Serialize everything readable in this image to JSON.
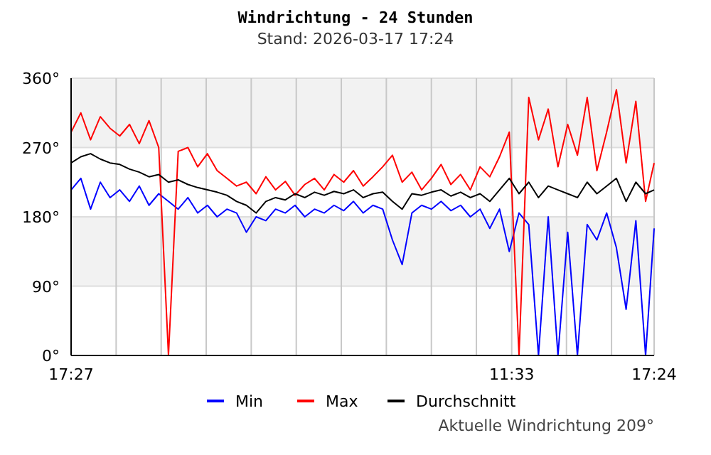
{
  "chart_data": {
    "type": "line",
    "title": "Windrichtung - 24 Stunden",
    "subtitle": "Stand: 2026-03-17 17:24",
    "annotations": [
      "Aktuelle Windrichtung 209°"
    ],
    "x": [
      "2026-03-16T17:27",
      "2026-03-16T17:51",
      "2026-03-16T18:15",
      "2026-03-16T18:39",
      "2026-03-16T19:03",
      "2026-03-16T19:27",
      "2026-03-16T19:51",
      "2026-03-16T20:15",
      "2026-03-16T20:39",
      "2026-03-16T21:03",
      "2026-03-16T21:27",
      "2026-03-16T21:51",
      "2026-03-16T22:15",
      "2026-03-16T22:39",
      "2026-03-16T23:03",
      "2026-03-16T23:27",
      "2026-03-16T23:51",
      "2026-03-17T00:15",
      "2026-03-17T00:39",
      "2026-03-17T01:03",
      "2026-03-17T01:27",
      "2026-03-17T01:51",
      "2026-03-17T02:15",
      "2026-03-17T02:39",
      "2026-03-17T03:03",
      "2026-03-17T03:27",
      "2026-03-17T03:51",
      "2026-03-17T04:15",
      "2026-03-17T04:39",
      "2026-03-17T05:03",
      "2026-03-17T05:27",
      "2026-03-17T05:51",
      "2026-03-17T06:15",
      "2026-03-17T06:39",
      "2026-03-17T07:03",
      "2026-03-17T07:27",
      "2026-03-17T07:51",
      "2026-03-17T08:15",
      "2026-03-17T08:39",
      "2026-03-17T09:03",
      "2026-03-17T09:27",
      "2026-03-17T09:51",
      "2026-03-17T10:15",
      "2026-03-17T10:39",
      "2026-03-17T11:03",
      "2026-03-17T11:27",
      "2026-03-17T11:51",
      "2026-03-17T12:15",
      "2026-03-17T12:39",
      "2026-03-17T13:03",
      "2026-03-17T13:27",
      "2026-03-17T13:51",
      "2026-03-17T14:15",
      "2026-03-17T14:39",
      "2026-03-17T15:03",
      "2026-03-17T15:27",
      "2026-03-17T15:51",
      "2026-03-17T16:15",
      "2026-03-17T16:39",
      "2026-03-17T17:03",
      "2026-03-17T17:24"
    ],
    "series": [
      {
        "name": "Min",
        "color": "#0000ff",
        "values": [
          215,
          230,
          190,
          225,
          205,
          215,
          200,
          220,
          195,
          210,
          200,
          190,
          205,
          185,
          195,
          180,
          190,
          185,
          160,
          180,
          175,
          190,
          185,
          195,
          180,
          190,
          185,
          195,
          188,
          200,
          185,
          195,
          190,
          150,
          118,
          185,
          195,
          190,
          200,
          188,
          195,
          180,
          190,
          165,
          190,
          135,
          185,
          170,
          0,
          180,
          0,
          160,
          0,
          170,
          150,
          185,
          140,
          60,
          175,
          0,
          165
        ]
      },
      {
        "name": "Max",
        "color": "#ff0000",
        "values": [
          290,
          315,
          280,
          310,
          295,
          285,
          300,
          275,
          305,
          270,
          0,
          265,
          270,
          245,
          262,
          240,
          230,
          220,
          225,
          210,
          232,
          215,
          226,
          208,
          222,
          230,
          215,
          235,
          225,
          240,
          220,
          232,
          245,
          260,
          225,
          238,
          215,
          230,
          248,
          222,
          235,
          215,
          245,
          232,
          258,
          290,
          0,
          335,
          280,
          320,
          245,
          300,
          260,
          335,
          240,
          290,
          345,
          250,
          330,
          200,
          250
        ]
      },
      {
        "name": "Durchschnitt",
        "color": "#000000",
        "values": [
          250,
          258,
          262,
          255,
          250,
          248,
          242,
          238,
          232,
          235,
          225,
          228,
          222,
          218,
          215,
          212,
          208,
          200,
          195,
          185,
          200,
          205,
          202,
          210,
          205,
          212,
          208,
          213,
          210,
          215,
          205,
          210,
          212,
          200,
          190,
          210,
          208,
          212,
          215,
          207,
          212,
          205,
          210,
          200,
          215,
          230,
          210,
          225,
          205,
          220,
          215,
          210,
          205,
          225,
          210,
          220,
          230,
          200,
          225,
          210,
          215
        ]
      }
    ],
    "xlim": [
      "2026-03-16T17:27",
      "2026-03-17T17:24"
    ],
    "xticks": [
      {
        "value": "2026-03-16T17:27",
        "label": "17:27"
      },
      {
        "value": "2026-03-16T19:18",
        "label": null
      },
      {
        "value": "2026-03-16T21:09",
        "label": null
      },
      {
        "value": "2026-03-16T23:00",
        "label": null
      },
      {
        "value": "2026-03-17T00:51",
        "label": null
      },
      {
        "value": "2026-03-17T02:42",
        "label": null
      },
      {
        "value": "2026-03-17T04:33",
        "label": null
      },
      {
        "value": "2026-03-17T06:24",
        "label": null
      },
      {
        "value": "2026-03-17T08:15",
        "label": null
      },
      {
        "value": "2026-03-17T10:06",
        "label": null
      },
      {
        "value": "2026-03-17T11:33",
        "label": "11:33"
      },
      {
        "value": "2026-03-17T13:48",
        "label": null
      },
      {
        "value": "2026-03-17T15:39",
        "label": null
      },
      {
        "value": "2026-03-17T17:24",
        "label": "17:24"
      }
    ],
    "ylim": [
      0,
      360
    ],
    "yticks": [
      {
        "value": 0,
        "label": "0°"
      },
      {
        "value": 90,
        "label": "90°"
      },
      {
        "value": 180,
        "label": "180°"
      },
      {
        "value": 270,
        "label": "270°"
      },
      {
        "value": 360,
        "label": "360°"
      }
    ],
    "bands": [
      {
        "axis": "y",
        "from": 90,
        "to": 180,
        "color": "#f2f2f2"
      },
      {
        "axis": "y",
        "from": 270,
        "to": 360,
        "color": "#f2f2f2"
      }
    ],
    "grid": true,
    "legend": "bottom",
    "marker": "none",
    "line_style": "solid"
  }
}
